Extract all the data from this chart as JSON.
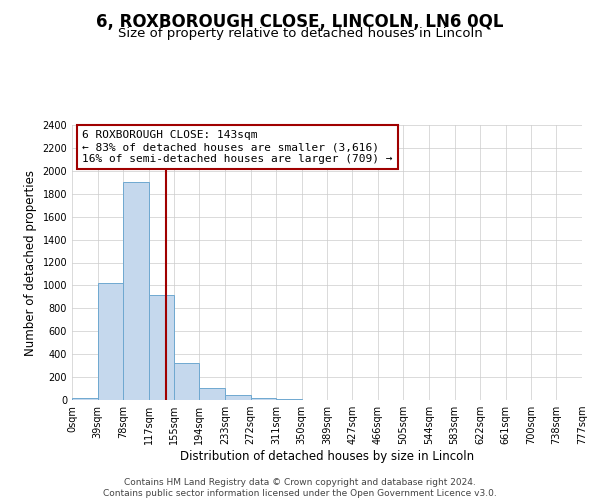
{
  "title": "6, ROXBOROUGH CLOSE, LINCOLN, LN6 0QL",
  "subtitle": "Size of property relative to detached houses in Lincoln",
  "xlabel": "Distribution of detached houses by size in Lincoln",
  "ylabel": "Number of detached properties",
  "footer_line1": "Contains HM Land Registry data © Crown copyright and database right 2024.",
  "footer_line2": "Contains public sector information licensed under the Open Government Licence v3.0.",
  "annotation_line1": "6 ROXBOROUGH CLOSE: 143sqm",
  "annotation_line2": "← 83% of detached houses are smaller (3,616)",
  "annotation_line3": "16% of semi-detached houses are larger (709) →",
  "bin_edges": [
    0,
    39,
    78,
    117,
    155,
    194,
    233,
    272,
    311,
    350,
    389,
    427,
    466,
    505,
    544,
    583,
    622,
    661,
    700,
    738,
    777
  ],
  "bin_counts": [
    20,
    1025,
    1900,
    920,
    320,
    105,
    45,
    20,
    5,
    0,
    0,
    0,
    0,
    0,
    0,
    0,
    0,
    0,
    0,
    0
  ],
  "property_size": 143,
  "bar_color": "#c5d8ed",
  "bar_edge_color": "#6fa8d0",
  "vline_color": "#a00000",
  "annotation_box_edge_color": "#a00000",
  "background_color": "#ffffff",
  "grid_color": "#cccccc",
  "ylim": [
    0,
    2400
  ],
  "yticks": [
    0,
    200,
    400,
    600,
    800,
    1000,
    1200,
    1400,
    1600,
    1800,
    2000,
    2200,
    2400
  ],
  "tick_labels": [
    "0sqm",
    "39sqm",
    "78sqm",
    "117sqm",
    "155sqm",
    "194sqm",
    "233sqm",
    "272sqm",
    "311sqm",
    "350sqm",
    "389sqm",
    "427sqm",
    "466sqm",
    "505sqm",
    "544sqm",
    "583sqm",
    "622sqm",
    "661sqm",
    "700sqm",
    "738sqm",
    "777sqm"
  ],
  "title_fontsize": 12,
  "subtitle_fontsize": 9.5,
  "axis_label_fontsize": 8.5,
  "tick_fontsize": 7,
  "annotation_fontsize": 8,
  "footer_fontsize": 6.5
}
